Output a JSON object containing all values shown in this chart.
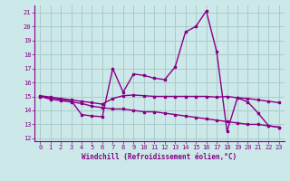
{
  "xlabel": "Windchill (Refroidissement éolien,°C)",
  "bg_color": "#cce8e8",
  "grid_color": "#aacccc",
  "line_color": "#880088",
  "xlim": [
    -0.5,
    23.5
  ],
  "ylim": [
    11.8,
    21.5
  ],
  "yticks": [
    12,
    13,
    14,
    15,
    16,
    17,
    18,
    19,
    20,
    21
  ],
  "xticks": [
    0,
    1,
    2,
    3,
    4,
    5,
    6,
    7,
    8,
    9,
    10,
    11,
    12,
    13,
    14,
    15,
    16,
    17,
    18,
    19,
    20,
    21,
    22,
    23
  ],
  "line1_x": [
    0,
    1,
    2,
    3,
    4,
    5,
    6,
    7,
    8,
    9,
    10,
    11,
    12,
    13,
    14,
    15,
    16,
    17,
    18,
    19,
    20,
    21,
    22,
    23
  ],
  "line1_y": [
    15.0,
    14.9,
    14.8,
    14.7,
    13.7,
    13.6,
    13.55,
    17.0,
    15.3,
    16.6,
    16.5,
    16.3,
    16.2,
    17.1,
    19.6,
    20.0,
    21.1,
    18.2,
    12.5,
    14.9,
    14.6,
    13.8,
    12.9,
    12.8
  ],
  "line2_x": [
    0,
    1,
    2,
    3,
    4,
    5,
    6,
    7,
    8,
    9,
    10,
    11,
    12,
    13,
    14,
    15,
    16,
    17,
    18,
    19,
    20,
    21,
    22,
    23
  ],
  "line2_y": [
    15.05,
    14.95,
    14.85,
    14.75,
    14.65,
    14.55,
    14.45,
    14.85,
    15.05,
    15.1,
    15.05,
    15.0,
    15.0,
    15.0,
    15.0,
    15.0,
    15.0,
    14.95,
    15.0,
    14.9,
    14.85,
    14.75,
    14.65,
    14.55
  ],
  "line3_x": [
    0,
    1,
    2,
    3,
    4,
    5,
    6,
    7,
    8,
    9,
    10,
    11,
    12,
    13,
    14,
    15,
    16,
    17,
    18,
    19,
    20,
    21,
    22,
    23
  ],
  "line3_y": [
    15.0,
    14.8,
    14.7,
    14.6,
    14.5,
    14.3,
    14.2,
    14.1,
    14.1,
    14.0,
    13.9,
    13.9,
    13.8,
    13.7,
    13.6,
    13.5,
    13.4,
    13.3,
    13.2,
    13.1,
    13.0,
    13.0,
    12.9,
    12.8
  ]
}
